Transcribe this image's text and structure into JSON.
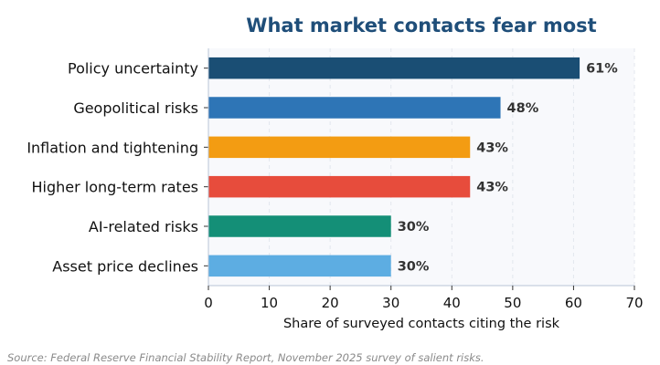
{
  "chart_data": {
    "type": "bar",
    "orientation": "horizontal",
    "title": "What market contacts fear most",
    "xlabel": "Share of surveyed contacts citing the risk",
    "ylabel": "",
    "xlim": [
      0,
      70
    ],
    "xticks": [
      0,
      10,
      20,
      30,
      40,
      50,
      60,
      70
    ],
    "grid": "vertical dashed",
    "categories": [
      "Policy uncertainty",
      "Geopolitical risks",
      "Inflation and tightening",
      "Higher long-term rates",
      "AI-related risks",
      "Asset price declines"
    ],
    "values": [
      61,
      48,
      43,
      43,
      30,
      30
    ],
    "value_labels": [
      "61%",
      "48%",
      "43%",
      "43%",
      "30%",
      "30%"
    ],
    "colors": [
      "#1a4e74",
      "#2e75b6",
      "#f39c12",
      "#e74c3c",
      "#148f77",
      "#5dade2"
    ]
  },
  "source_note": "Source: Federal Reserve Financial Stability Report, November 2025 survey of salient risks."
}
